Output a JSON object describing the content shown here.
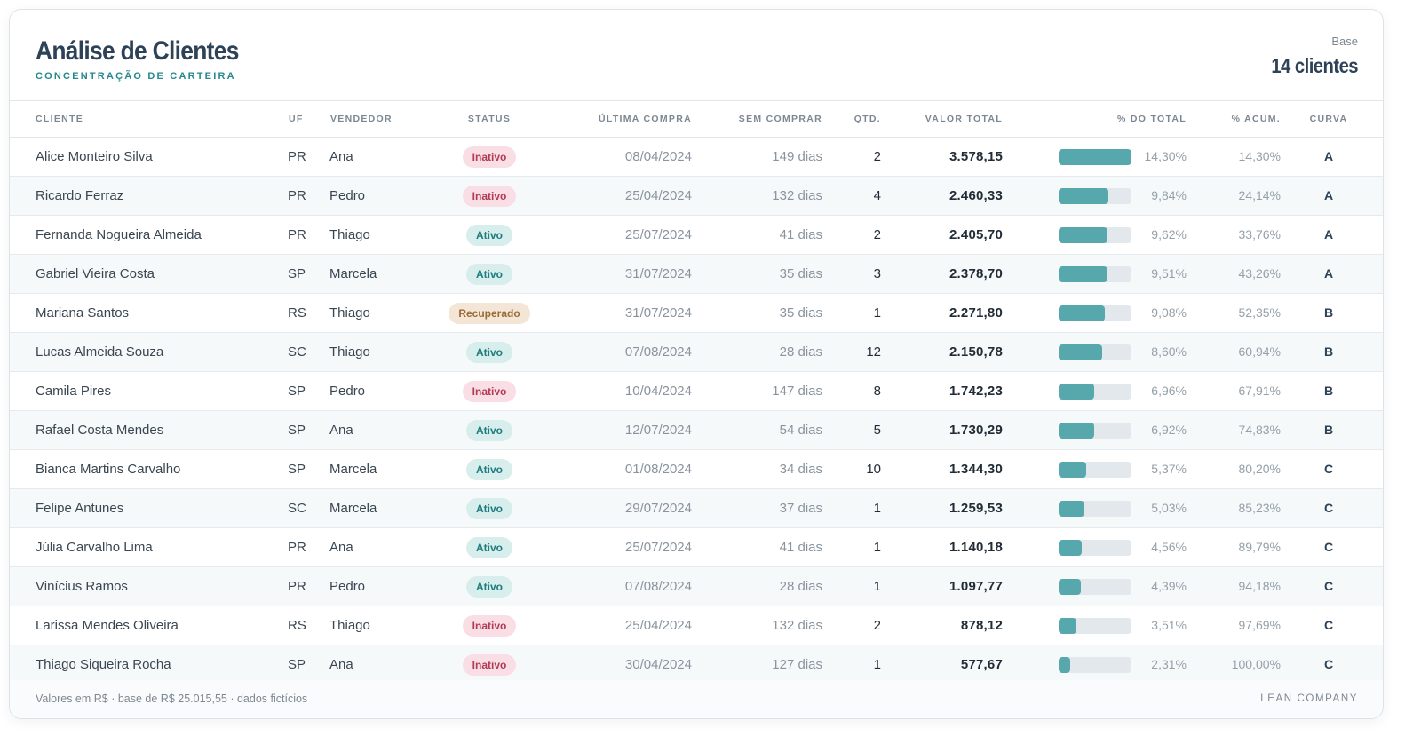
{
  "header": {
    "title": "Análise de Clientes",
    "subtitle": "CONCENTRAÇÃO DE CARTEIRA",
    "base_label": "Base",
    "base_value": "14 clientes"
  },
  "columns": {
    "cliente": "CLIENTE",
    "uf": "UF",
    "vendedor": "VENDEDOR",
    "status": "STATUS",
    "ultima_compra": "ÚLTIMA COMPRA",
    "sem_comprar": "SEM COMPRAR",
    "qtd": "QTD.",
    "valor_total": "VALOR TOTAL",
    "pct_total": "% DO TOTAL",
    "pct_acum": "% ACUM.",
    "curva": "CURVA"
  },
  "colors": {
    "bar_fill": "#56a8ac",
    "bar_track": "#e3e8ec",
    "status_inativo_bg": "#f9dfe5",
    "status_ativo_bg": "#d7eeed",
    "status_recuperado_bg": "#f4e6d6"
  },
  "rows": [
    {
      "cliente": "Alice Monteiro Silva",
      "uf": "PR",
      "vendedor": "Ana",
      "status": "Inativo",
      "ultima_compra": "08/04/2024",
      "sem_comprar": "149 dias",
      "qtd": "2",
      "valor_total": "3.578,15",
      "pct_total": "14,30%",
      "pct_value": 14.3,
      "pct_acum": "14,30%",
      "curva": "A"
    },
    {
      "cliente": "Ricardo Ferraz",
      "uf": "PR",
      "vendedor": "Pedro",
      "status": "Inativo",
      "ultima_compra": "25/04/2024",
      "sem_comprar": "132 dias",
      "qtd": "4",
      "valor_total": "2.460,33",
      "pct_total": "9,84%",
      "pct_value": 9.84,
      "pct_acum": "24,14%",
      "curva": "A"
    },
    {
      "cliente": "Fernanda Nogueira Almeida",
      "uf": "PR",
      "vendedor": "Thiago",
      "status": "Ativo",
      "ultima_compra": "25/07/2024",
      "sem_comprar": "41 dias",
      "qtd": "2",
      "valor_total": "2.405,70",
      "pct_total": "9,62%",
      "pct_value": 9.62,
      "pct_acum": "33,76%",
      "curva": "A"
    },
    {
      "cliente": "Gabriel Vieira Costa",
      "uf": "SP",
      "vendedor": "Marcela",
      "status": "Ativo",
      "ultima_compra": "31/07/2024",
      "sem_comprar": "35 dias",
      "qtd": "3",
      "valor_total": "2.378,70",
      "pct_total": "9,51%",
      "pct_value": 9.51,
      "pct_acum": "43,26%",
      "curva": "A"
    },
    {
      "cliente": "Mariana Santos",
      "uf": "RS",
      "vendedor": "Thiago",
      "status": "Recuperado",
      "ultima_compra": "31/07/2024",
      "sem_comprar": "35 dias",
      "qtd": "1",
      "valor_total": "2.271,80",
      "pct_total": "9,08%",
      "pct_value": 9.08,
      "pct_acum": "52,35%",
      "curva": "B"
    },
    {
      "cliente": "Lucas Almeida Souza",
      "uf": "SC",
      "vendedor": "Thiago",
      "status": "Ativo",
      "ultima_compra": "07/08/2024",
      "sem_comprar": "28 dias",
      "qtd": "12",
      "valor_total": "2.150,78",
      "pct_total": "8,60%",
      "pct_value": 8.6,
      "pct_acum": "60,94%",
      "curva": "B"
    },
    {
      "cliente": "Camila Pires",
      "uf": "SP",
      "vendedor": "Pedro",
      "status": "Inativo",
      "ultima_compra": "10/04/2024",
      "sem_comprar": "147 dias",
      "qtd": "8",
      "valor_total": "1.742,23",
      "pct_total": "6,96%",
      "pct_value": 6.96,
      "pct_acum": "67,91%",
      "curva": "B"
    },
    {
      "cliente": "Rafael Costa Mendes",
      "uf": "SP",
      "vendedor": "Ana",
      "status": "Ativo",
      "ultima_compra": "12/07/2024",
      "sem_comprar": "54 dias",
      "qtd": "5",
      "valor_total": "1.730,29",
      "pct_total": "6,92%",
      "pct_value": 6.92,
      "pct_acum": "74,83%",
      "curva": "B"
    },
    {
      "cliente": "Bianca Martins Carvalho",
      "uf": "SP",
      "vendedor": "Marcela",
      "status": "Ativo",
      "ultima_compra": "01/08/2024",
      "sem_comprar": "34 dias",
      "qtd": "10",
      "valor_total": "1.344,30",
      "pct_total": "5,37%",
      "pct_value": 5.37,
      "pct_acum": "80,20%",
      "curva": "C"
    },
    {
      "cliente": "Felipe Antunes",
      "uf": "SC",
      "vendedor": "Marcela",
      "status": "Ativo",
      "ultima_compra": "29/07/2024",
      "sem_comprar": "37 dias",
      "qtd": "1",
      "valor_total": "1.259,53",
      "pct_total": "5,03%",
      "pct_value": 5.03,
      "pct_acum": "85,23%",
      "curva": "C"
    },
    {
      "cliente": "Júlia Carvalho Lima",
      "uf": "PR",
      "vendedor": "Ana",
      "status": "Ativo",
      "ultima_compra": "25/07/2024",
      "sem_comprar": "41 dias",
      "qtd": "1",
      "valor_total": "1.140,18",
      "pct_total": "4,56%",
      "pct_value": 4.56,
      "pct_acum": "89,79%",
      "curva": "C"
    },
    {
      "cliente": "Vinícius Ramos",
      "uf": "PR",
      "vendedor": "Pedro",
      "status": "Ativo",
      "ultima_compra": "07/08/2024",
      "sem_comprar": "28 dias",
      "qtd": "1",
      "valor_total": "1.097,77",
      "pct_total": "4,39%",
      "pct_value": 4.39,
      "pct_acum": "94,18%",
      "curva": "C"
    },
    {
      "cliente": "Larissa Mendes Oliveira",
      "uf": "RS",
      "vendedor": "Thiago",
      "status": "Inativo",
      "ultima_compra": "25/04/2024",
      "sem_comprar": "132 dias",
      "qtd": "2",
      "valor_total": "878,12",
      "pct_total": "3,51%",
      "pct_value": 3.51,
      "pct_acum": "97,69%",
      "curva": "C"
    },
    {
      "cliente": "Thiago Siqueira Rocha",
      "uf": "SP",
      "vendedor": "Ana",
      "status": "Inativo",
      "ultima_compra": "30/04/2024",
      "sem_comprar": "127 dias",
      "qtd": "1",
      "valor_total": "577,67",
      "pct_total": "2,31%",
      "pct_value": 2.31,
      "pct_acum": "100,00%",
      "curva": "C"
    }
  ],
  "footer": {
    "note": "Valores em R$ · base de R$ 25.015,55 · dados fictícios",
    "brand": "LEAN COMPANY"
  }
}
